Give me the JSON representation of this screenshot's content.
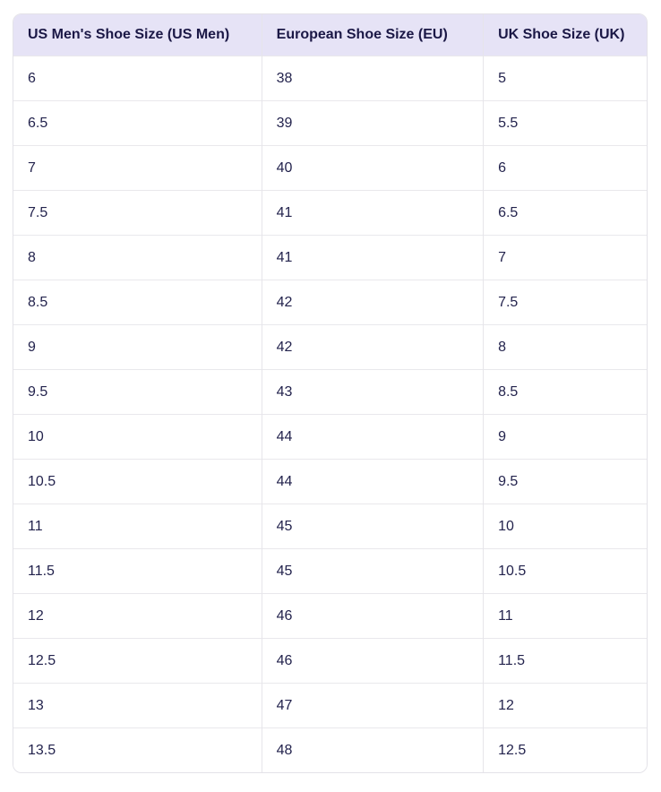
{
  "table": {
    "columns": [
      "US Men's Shoe Size (US Men)",
      "European Shoe Size (EU)",
      "UK Shoe Size (UK)"
    ],
    "rows": [
      [
        "6",
        "38",
        "5"
      ],
      [
        "6.5",
        "39",
        "5.5"
      ],
      [
        "7",
        "40",
        "6"
      ],
      [
        "7.5",
        "41",
        "6.5"
      ],
      [
        "8",
        "41",
        "7"
      ],
      [
        "8.5",
        "42",
        "7.5"
      ],
      [
        "9",
        "42",
        "8"
      ],
      [
        "9.5",
        "43",
        "8.5"
      ],
      [
        "10",
        "44",
        "9"
      ],
      [
        "10.5",
        "44",
        "9.5"
      ],
      [
        "11",
        "45",
        "10"
      ],
      [
        "11.5",
        "45",
        "10.5"
      ],
      [
        "12",
        "46",
        "11"
      ],
      [
        "12.5",
        "46",
        "11.5"
      ],
      [
        "13",
        "47",
        "12"
      ],
      [
        "13.5",
        "48",
        "12.5"
      ]
    ]
  },
  "chart_data": {
    "type": "table",
    "title": "",
    "columns": [
      "US Men's Shoe Size (US Men)",
      "European Shoe Size (EU)",
      "UK Shoe Size (UK)"
    ],
    "rows": [
      [
        "6",
        "38",
        "5"
      ],
      [
        "6.5",
        "39",
        "5.5"
      ],
      [
        "7",
        "40",
        "6"
      ],
      [
        "7.5",
        "41",
        "6.5"
      ],
      [
        "8",
        "41",
        "7"
      ],
      [
        "8.5",
        "42",
        "7.5"
      ],
      [
        "9",
        "42",
        "8"
      ],
      [
        "9.5",
        "43",
        "8.5"
      ],
      [
        "10",
        "44",
        "9"
      ],
      [
        "10.5",
        "44",
        "9.5"
      ],
      [
        "11",
        "45",
        "10"
      ],
      [
        "11.5",
        "45",
        "10.5"
      ],
      [
        "12",
        "46",
        "11"
      ],
      [
        "12.5",
        "46",
        "11.5"
      ],
      [
        "13",
        "47",
        "12"
      ],
      [
        "13.5",
        "48",
        "12.5"
      ]
    ]
  },
  "colors": {
    "header_background": "#e6e3f6",
    "header_text": "#1b1846",
    "cell_text": "#23234d",
    "row_border": "#e9e8ec",
    "column_border": "#e6e5ea",
    "card_border": "#e3e2e8",
    "page_background": "#ffffff"
  }
}
